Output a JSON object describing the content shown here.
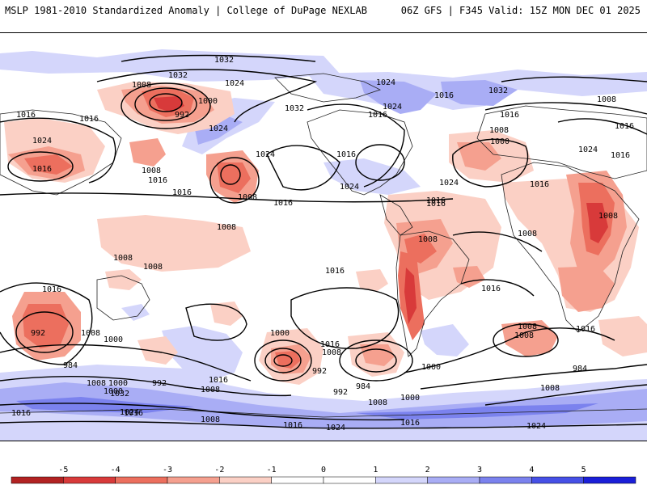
{
  "header": {
    "title_left": "MSLP 1981-2010 Standardized Anomaly | College of DuPage NEXLAB",
    "title_right": "06Z GFS | F345 Valid: 15Z MON DEC 01 2025"
  },
  "colors": {
    "background": "#ffffff",
    "neg5": "#b22222",
    "neg4": "#d83a3a",
    "neg3": "#ec6f5e",
    "neg2": "#f5a08f",
    "neg1": "#fbd0c5",
    "pos1": "#d4d6fb",
    "pos2": "#a9adf5",
    "pos3": "#7b82ee",
    "pos4": "#4650e6",
    "pos5": "#1a1fd8",
    "land_outline": "#222222",
    "isobar": "#000000"
  },
  "isobar_labels": [
    {
      "text": "1032"
    },
    {
      "text": "1032"
    },
    {
      "text": "1024"
    },
    {
      "text": "1008"
    },
    {
      "text": "1000"
    },
    {
      "text": "992"
    },
    {
      "text": "1016"
    },
    {
      "text": "1016"
    },
    {
      "text": "1024"
    },
    {
      "text": "1016"
    },
    {
      "text": "1024"
    },
    {
      "text": "1032"
    },
    {
      "text": "1024"
    },
    {
      "text": "1008"
    },
    {
      "text": "1016"
    },
    {
      "text": "1016"
    },
    {
      "text": "1024"
    },
    {
      "text": "1016"
    },
    {
      "text": "1008"
    },
    {
      "text": "1016"
    },
    {
      "text": "1024"
    },
    {
      "text": "1016"
    },
    {
      "text": "1024"
    },
    {
      "text": "1016"
    },
    {
      "text": "1032"
    },
    {
      "text": "1016"
    },
    {
      "text": "1008"
    },
    {
      "text": "1000"
    },
    {
      "text": "1016"
    },
    {
      "text": "1016"
    },
    {
      "text": "1024"
    },
    {
      "text": "1016"
    },
    {
      "text": "1024"
    },
    {
      "text": "1016"
    },
    {
      "text": "1008"
    },
    {
      "text": "1016"
    },
    {
      "text": "1008"
    },
    {
      "text": "1008"
    },
    {
      "text": "1008"
    },
    {
      "text": "1008"
    },
    {
      "text": "1008"
    },
    {
      "text": "1008"
    },
    {
      "text": "1016"
    },
    {
      "text": "1016"
    },
    {
      "text": "1016"
    },
    {
      "text": "992"
    },
    {
      "text": "1008"
    },
    {
      "text": "1000"
    },
    {
      "text": "984"
    },
    {
      "text": "1016"
    },
    {
      "text": "1008"
    },
    {
      "text": "1000"
    },
    {
      "text": "992"
    },
    {
      "text": "1032"
    },
    {
      "text": "1016"
    },
    {
      "text": "1024"
    },
    {
      "text": "1008"
    },
    {
      "text": "1016"
    },
    {
      "text": "1000"
    },
    {
      "text": "1016"
    },
    {
      "text": "1008"
    },
    {
      "text": "992"
    },
    {
      "text": "984"
    },
    {
      "text": "992"
    },
    {
      "text": "1000"
    },
    {
      "text": "1008"
    },
    {
      "text": "1000"
    },
    {
      "text": "1008"
    },
    {
      "text": "1016"
    },
    {
      "text": "1008"
    },
    {
      "text": "1016"
    },
    {
      "text": "984"
    },
    {
      "text": "1008"
    },
    {
      "text": "1024"
    },
    {
      "text": "1016"
    },
    {
      "text": "1024"
    },
    {
      "text": "1000"
    },
    {
      "text": "1008"
    }
  ],
  "colorbar": {
    "ticks": [
      "-5",
      "-4",
      "-3",
      "-2",
      "-1",
      "0",
      "1",
      "2",
      "3",
      "4",
      "5"
    ]
  }
}
